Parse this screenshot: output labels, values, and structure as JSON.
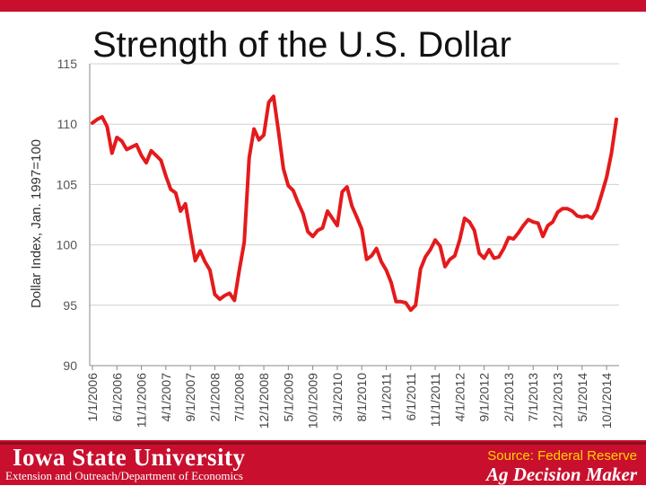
{
  "slide": {
    "title": "Strength of the U.S. Dollar",
    "university": "Iowa State University",
    "department": "Extension and Outreach/Department of Economics",
    "source": "Source: Federal Reserve",
    "brand": "Ag Decision Maker"
  },
  "colors": {
    "line": "#e41a1c",
    "footer": "#c8102e",
    "source_text": "#ffd200"
  },
  "chart_data": {
    "type": "line",
    "title": "Strength of the U.S. Dollar",
    "xlabel": "",
    "ylabel": "Dollar Index, Jan. 1997=100",
    "ylim": [
      90,
      115
    ],
    "yticks": [
      "90",
      "95",
      "100",
      "105",
      "110",
      "115"
    ],
    "xticks": [
      "1/1/2006",
      "6/1/2006",
      "11/1/2006",
      "4/1/2007",
      "9/1/2007",
      "2/1/2008",
      "7/1/2008",
      "12/1/2008",
      "5/1/2009",
      "10/1/2009",
      "3/1/2010",
      "8/1/2010",
      "1/1/2011",
      "6/1/2011",
      "11/1/2011",
      "4/1/2012",
      "9/1/2012",
      "2/1/2013",
      "7/1/2013",
      "12/1/2013",
      "5/1/2014",
      "10/1/2014"
    ],
    "grid": "horizontal",
    "series": [
      {
        "values": [
          110.1,
          110.4,
          110.6,
          109.8,
          107.6,
          108.9,
          108.6,
          107.9,
          108.1,
          108.3,
          107.4,
          106.8,
          107.8,
          107.4,
          107.0,
          105.7,
          104.6,
          104.3,
          102.8,
          103.4,
          101.0,
          98.7,
          99.5,
          98.6,
          97.9,
          95.9,
          95.5,
          95.8,
          96.0,
          95.4,
          97.9,
          100.2,
          107.2,
          109.6,
          108.7,
          109.1,
          111.8,
          112.3,
          109.4,
          106.3,
          104.9,
          104.5,
          103.5,
          102.6,
          101.1,
          100.7,
          101.2,
          101.4,
          102.8,
          102.2,
          101.6,
          104.4,
          104.8,
          103.2,
          102.3,
          101.3,
          98.8,
          99.1,
          99.7,
          98.6,
          97.9,
          96.9,
          95.3,
          95.3,
          95.2,
          94.6,
          95.0,
          98.0,
          99.0,
          99.6,
          100.4,
          99.9,
          98.2,
          98.8,
          99.1,
          100.4,
          102.2,
          101.9,
          101.2,
          99.3,
          98.9,
          99.6,
          98.9,
          99.0,
          99.7,
          100.6,
          100.5,
          101.0,
          101.6,
          102.1,
          101.9,
          101.8,
          100.7,
          101.6,
          101.9,
          102.7,
          103.0,
          103.0,
          102.8,
          102.4,
          102.3,
          102.4,
          102.2,
          102.9,
          104.2,
          105.6,
          107.6,
          110.4
        ]
      }
    ]
  }
}
